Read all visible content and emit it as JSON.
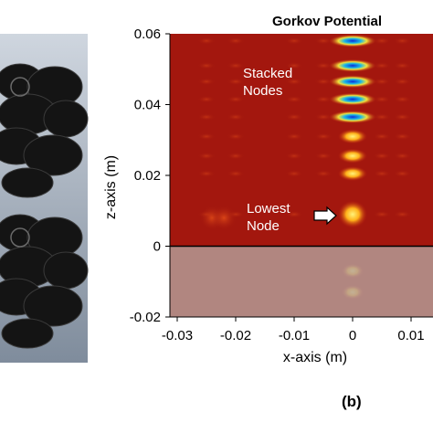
{
  "chart_data": {
    "type": "heatmap",
    "title": "Gorkov Potential",
    "xlabel": "x-axis (m)",
    "ylabel": "z-axis (m)",
    "xlim": [
      -0.03,
      0.01
    ],
    "ylim": [
      -0.02,
      0.06
    ],
    "x_ticks": [
      "-0.03",
      "-0.02",
      "-0.01",
      "0",
      "0.01"
    ],
    "x_tick_values": [
      -0.03,
      -0.02,
      -0.01,
      0,
      0.01
    ],
    "y_ticks": [
      "0.06",
      "0.04",
      "0.02",
      "0",
      "-0.02"
    ],
    "y_tick_values": [
      0.06,
      0.04,
      0.02,
      0,
      -0.02
    ],
    "reflector_level_z": 0,
    "stacked_node_centers_z": [
      0.058,
      0.051,
      0.0465,
      0.0415,
      0.0365,
      0.031,
      0.0255,
      0.0205,
      0.009
    ],
    "annotations": {
      "stacked_nodes_label": "Stacked Nodes",
      "lowest_node_label": "Lowest Node"
    },
    "background_color": "#a0160e",
    "node_color_low": "#1030d0",
    "node_color_high": "#ffe040"
  },
  "panel_label": "(b)",
  "left_panel": {
    "description_icon": "transducer-array-render"
  }
}
